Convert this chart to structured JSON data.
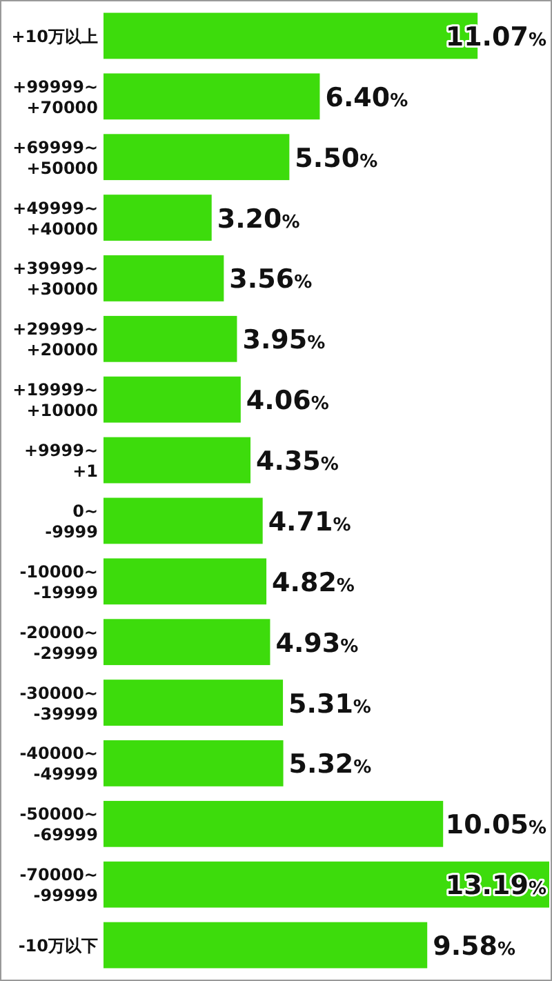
{
  "chart_data": {
    "type": "bar",
    "orientation": "horizontal",
    "categories": [
      "+10万以上",
      "+99999~+70000",
      "+69999~+50000",
      "+49999~+40000",
      "+39999~+30000",
      "+29999~+20000",
      "+19999~+10000",
      "+9999~+1",
      "0~-9999",
      "-10000~-19999",
      "-20000~-29999",
      "-30000~-39999",
      "-40000~-49999",
      "-50000~-69999",
      "-70000~-99999",
      "-10万以下"
    ],
    "values": [
      11.07,
      6.4,
      5.5,
      3.2,
      3.56,
      3.95,
      4.06,
      4.35,
      4.71,
      4.82,
      4.93,
      5.31,
      5.32,
      10.05,
      13.19,
      9.58
    ],
    "value_labels": [
      "11.07%",
      "6.40%",
      "5.50%",
      "3.20%",
      "3.56%",
      "3.95%",
      "4.06%",
      "4.35%",
      "4.71%",
      "4.82%",
      "4.93%",
      "5.31%",
      "5.32%",
      "10.05%",
      "13.19%",
      "9.58%"
    ],
    "color": "#3ddc0c"
  }
}
